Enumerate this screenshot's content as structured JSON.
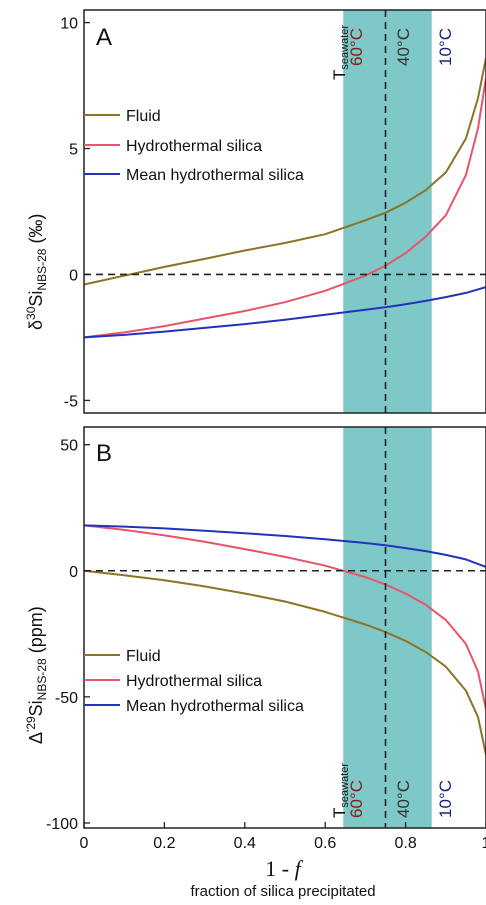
{
  "colors": {
    "fluid": "#8c7325",
    "hydrothermal_silica": "#e8546a",
    "mean_hydrothermal_silica": "#2233bb",
    "band": "#7ec8c8",
    "temp_60": "#8b1a1a",
    "temp_40": "#333333",
    "temp_10": "#1a237e"
  },
  "chart_data": [
    {
      "type": "line",
      "panel": "A",
      "ylabel": {
        "prefix": "δ",
        "sup": "30",
        "main": "Si",
        "sub": "NBS-28",
        "unit": " (‰)"
      },
      "xlim": [
        0,
        1
      ],
      "ylim": [
        -5.5,
        10.5
      ],
      "yticks": [
        10,
        5,
        0,
        -5
      ],
      "ytick_labels": [
        "10",
        "5",
        "0",
        "-5"
      ],
      "hline": 0,
      "vline": 0.75,
      "band": [
        0.645,
        0.865
      ],
      "band_labels": {
        "tseawater": {
          "main": "T",
          "sub": "seawater"
        },
        "t60": "60°C",
        "t40": "40°C",
        "t10": "10°C"
      },
      "legend": {
        "fluid": "Fluid",
        "hs": "Hydrothermal silica",
        "mhs": "Mean hydrothermal silica"
      },
      "series": [
        {
          "name": "Fluid",
          "x": [
            0,
            0.1,
            0.2,
            0.3,
            0.4,
            0.5,
            0.6,
            0.7,
            0.75,
            0.8,
            0.85,
            0.9,
            0.95,
            0.98,
            1.0
          ],
          "y": [
            -0.4,
            -0.05,
            0.3,
            0.62,
            0.95,
            1.25,
            1.6,
            2.15,
            2.45,
            2.85,
            3.35,
            4.05,
            5.4,
            7.0,
            8.6
          ]
        },
        {
          "name": "Hydrothermal silica",
          "x": [
            0,
            0.1,
            0.2,
            0.3,
            0.4,
            0.5,
            0.6,
            0.7,
            0.75,
            0.8,
            0.85,
            0.9,
            0.95,
            0.98,
            1.0
          ],
          "y": [
            -2.5,
            -2.3,
            -2.05,
            -1.75,
            -1.45,
            -1.1,
            -0.65,
            -0.05,
            0.35,
            0.85,
            1.5,
            2.35,
            3.95,
            5.8,
            7.8
          ]
        },
        {
          "name": "Mean hydrothermal silica",
          "x": [
            0,
            0.1,
            0.2,
            0.3,
            0.4,
            0.5,
            0.6,
            0.7,
            0.75,
            0.8,
            0.85,
            0.9,
            0.95,
            1.0
          ],
          "y": [
            -2.5,
            -2.4,
            -2.27,
            -2.12,
            -1.97,
            -1.8,
            -1.6,
            -1.4,
            -1.3,
            -1.18,
            -1.05,
            -0.9,
            -0.73,
            -0.5
          ]
        }
      ]
    },
    {
      "type": "line",
      "panel": "B",
      "ylabel": {
        "prefix": "Δ",
        "sup": "'29",
        "main": "Si",
        "sub": "NBS-28",
        "unit": " (ppm)"
      },
      "xlim": [
        0,
        1
      ],
      "ylim": [
        -102,
        57
      ],
      "yticks": [
        50,
        0,
        -50,
        -100
      ],
      "ytick_labels": [
        "50",
        "0",
        "-50",
        "-100"
      ],
      "xticks": [
        0,
        0.2,
        0.4,
        0.6,
        0.8,
        1.0
      ],
      "xtick_labels": [
        "0",
        "0.2",
        "0.4",
        "0.6",
        "0.8",
        "1"
      ],
      "hline": 0,
      "vline": 0.75,
      "band": [
        0.645,
        0.865
      ],
      "band_labels": {
        "tseawater": {
          "main": "T",
          "sub": "seawater"
        },
        "t60": "60°C",
        "t40": "40°C",
        "t10": "10°C"
      },
      "legend": {
        "fluid": "Fluid",
        "hs": "Hydrothermal silica",
        "mhs": "Mean hydrothermal silica"
      },
      "xlabel": {
        "main": "1 - ",
        "italic": "f",
        "sub": "fraction of silica precipitated"
      },
      "series": [
        {
          "name": "Fluid",
          "x": [
            0,
            0.1,
            0.2,
            0.3,
            0.4,
            0.5,
            0.6,
            0.7,
            0.75,
            0.8,
            0.85,
            0.9,
            0.95,
            0.98,
            1.0
          ],
          "y": [
            0,
            -1.8,
            -3.8,
            -6.2,
            -9.0,
            -12.2,
            -16.3,
            -21.3,
            -24.3,
            -27.8,
            -32.2,
            -38.0,
            -47.5,
            -58.0,
            -73.0
          ]
        },
        {
          "name": "Hydrothermal silica",
          "x": [
            0,
            0.1,
            0.2,
            0.3,
            0.4,
            0.5,
            0.6,
            0.7,
            0.75,
            0.8,
            0.85,
            0.9,
            0.95,
            0.98,
            1.0
          ],
          "y": [
            18,
            16.2,
            14.0,
            11.5,
            8.6,
            5.5,
            2.0,
            -2.5,
            -5.5,
            -9.0,
            -13.5,
            -19.5,
            -29.0,
            -40.0,
            -55.0
          ]
        },
        {
          "name": "Mean hydrothermal silica",
          "x": [
            0,
            0.1,
            0.2,
            0.3,
            0.4,
            0.5,
            0.6,
            0.7,
            0.75,
            0.8,
            0.85,
            0.9,
            0.95,
            1.0
          ],
          "y": [
            18,
            17.5,
            16.8,
            15.9,
            14.9,
            13.8,
            12.5,
            11.0,
            10.1,
            9.0,
            7.8,
            6.3,
            4.5,
            1.5
          ]
        }
      ]
    }
  ]
}
